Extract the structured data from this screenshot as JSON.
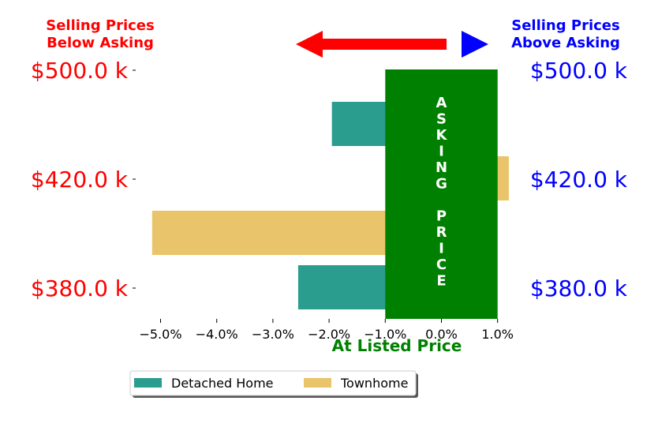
{
  "header": {
    "left_line1": "Selling Prices",
    "left_line2": "Below Asking",
    "right_line1": "Selling Prices",
    "right_line2": "Above Asking"
  },
  "colors": {
    "below": "#ff0000",
    "above": "#0000ff",
    "asking": "#008000",
    "detached": "#2a9d8f",
    "townhome": "#e9c46a"
  },
  "chart_data": {
    "type": "bar",
    "orientation": "horizontal",
    "categories": [
      "$500.0 k",
      "$420.0 k",
      "$380.0 k"
    ],
    "series": [
      {
        "name": "Detached Home",
        "values": [
          -1.95,
          null,
          -2.55
        ]
      },
      {
        "name": "Townhome",
        "values": [
          null,
          1.2,
          -5.15
        ]
      }
    ],
    "xlim": [
      -5.5,
      1.2
    ],
    "xticks": [
      "−5.0%",
      "−4.0%",
      "−3.0%",
      "−2.0%",
      "−1.0%",
      "0.0%",
      "1.0%"
    ],
    "xtick_values": [
      -5,
      -4,
      -3,
      -2,
      -1,
      0,
      1
    ],
    "xlabel": "At Listed Price",
    "asking_band": {
      "from": -1.0,
      "to": 1.0,
      "label": [
        "A",
        "S",
        "K",
        "I",
        "N",
        "G",
        "",
        "P",
        "R",
        "I",
        "C",
        "E"
      ]
    },
    "legend": {
      "placement": "bottom-left",
      "entries": [
        "Detached Home",
        "Townhome"
      ]
    }
  }
}
